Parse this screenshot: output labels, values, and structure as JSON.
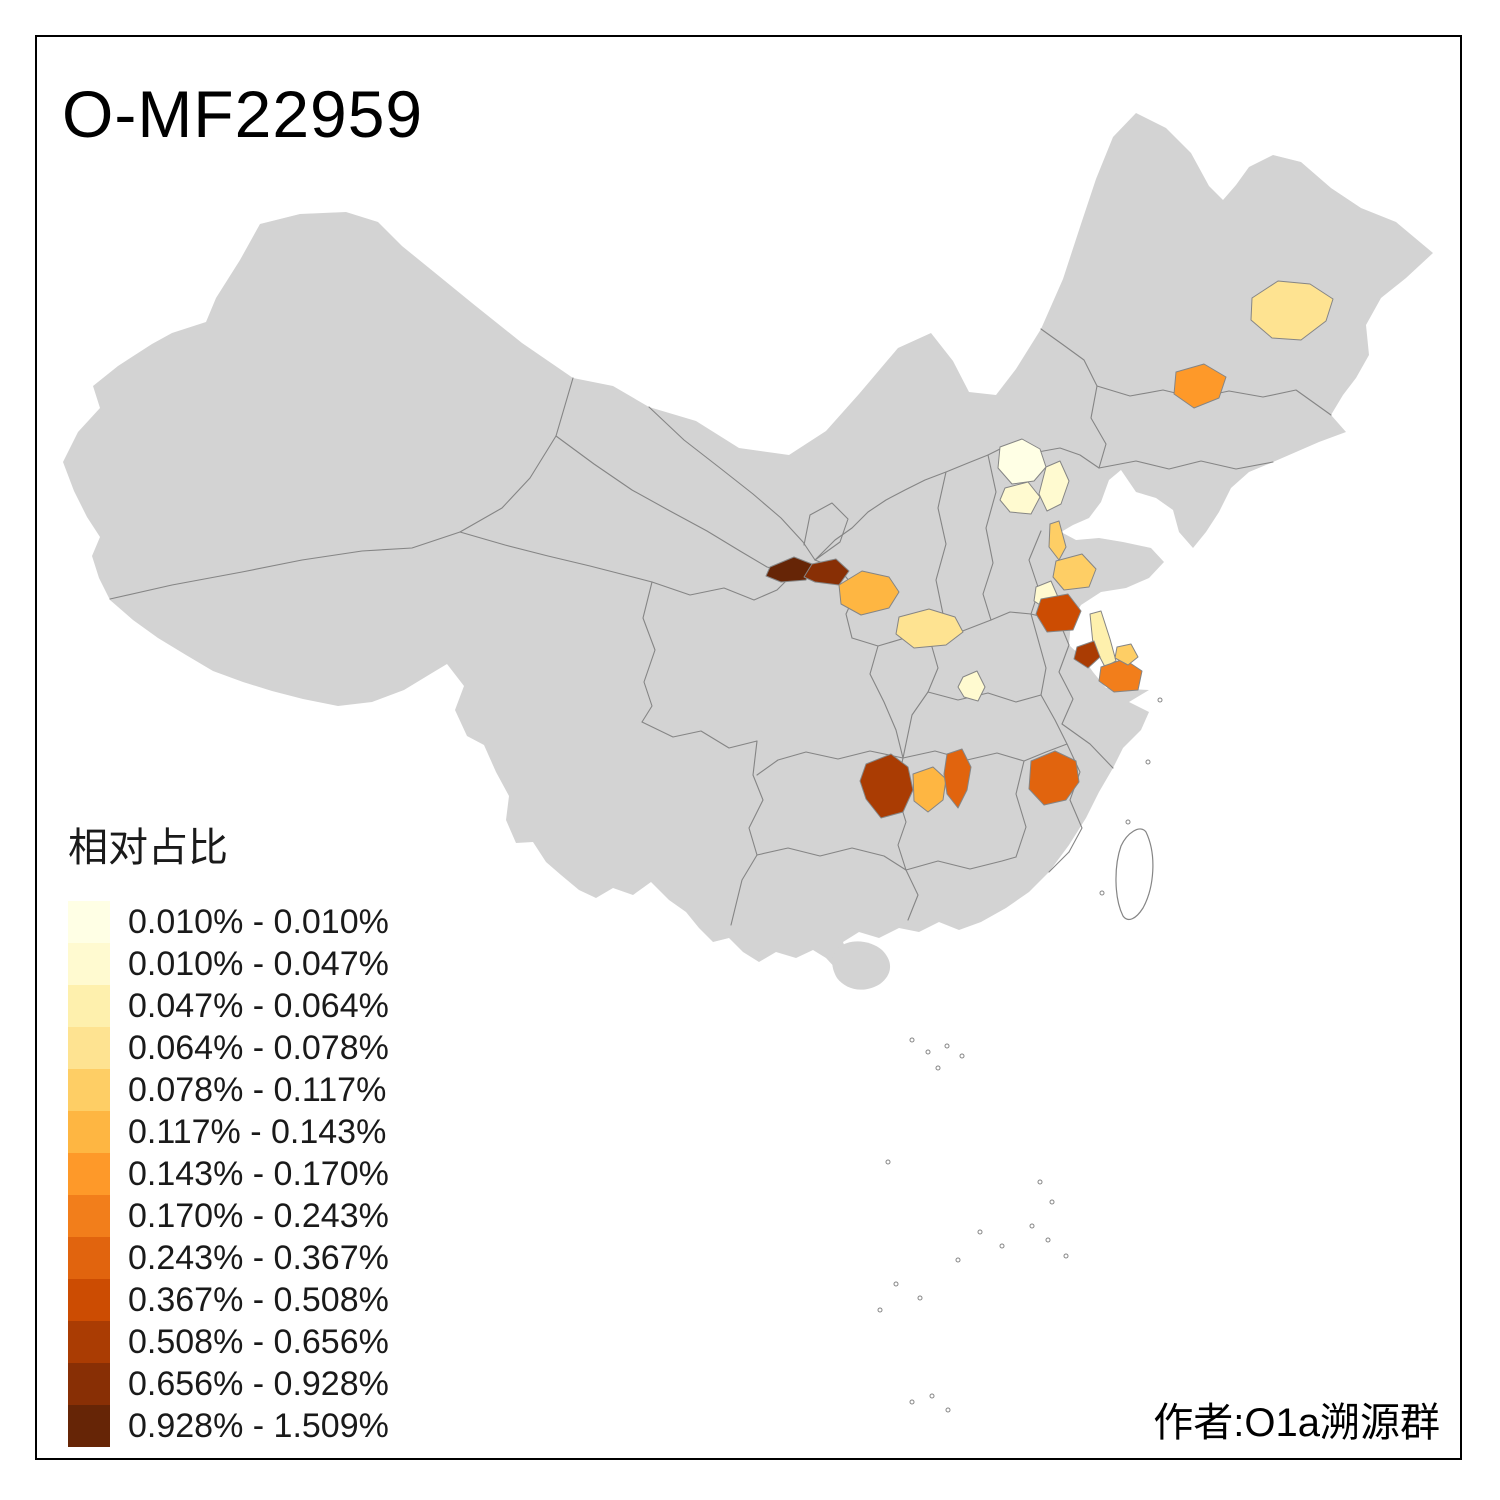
{
  "title": "O-MF22959",
  "attribution": "作者:O1a溯源群",
  "legend": {
    "title": "相对占比",
    "items": [
      {
        "label": "0.010% - 0.010%",
        "color": "#FFFFE5"
      },
      {
        "label": "0.010% - 0.047%",
        "color": "#FFFAD0"
      },
      {
        "label": "0.047% - 0.064%",
        "color": "#FEF0AD"
      },
      {
        "label": "0.064% - 0.078%",
        "color": "#FEE391"
      },
      {
        "label": "0.078% - 0.117%",
        "color": "#FECE65"
      },
      {
        "label": "0.117% - 0.143%",
        "color": "#FEB642"
      },
      {
        "label": "0.143% - 0.170%",
        "color": "#FE9929"
      },
      {
        "label": "0.170% - 0.243%",
        "color": "#F27E1B"
      },
      {
        "label": "0.243% - 0.367%",
        "color": "#E1640E"
      },
      {
        "label": "0.367% - 0.508%",
        "color": "#CC4C02"
      },
      {
        "label": "0.508% - 0.656%",
        "color": "#AA3C03"
      },
      {
        "label": "0.656% - 0.928%",
        "color": "#882F05"
      },
      {
        "label": "0.928% - 1.509%",
        "color": "#662506"
      }
    ]
  },
  "map": {
    "land_fill": "#D3D3D3",
    "border_color": "#858585",
    "island_fill": "#FFFFFF",
    "background": "#FFFFFF",
    "frame_color": "#000000"
  }
}
